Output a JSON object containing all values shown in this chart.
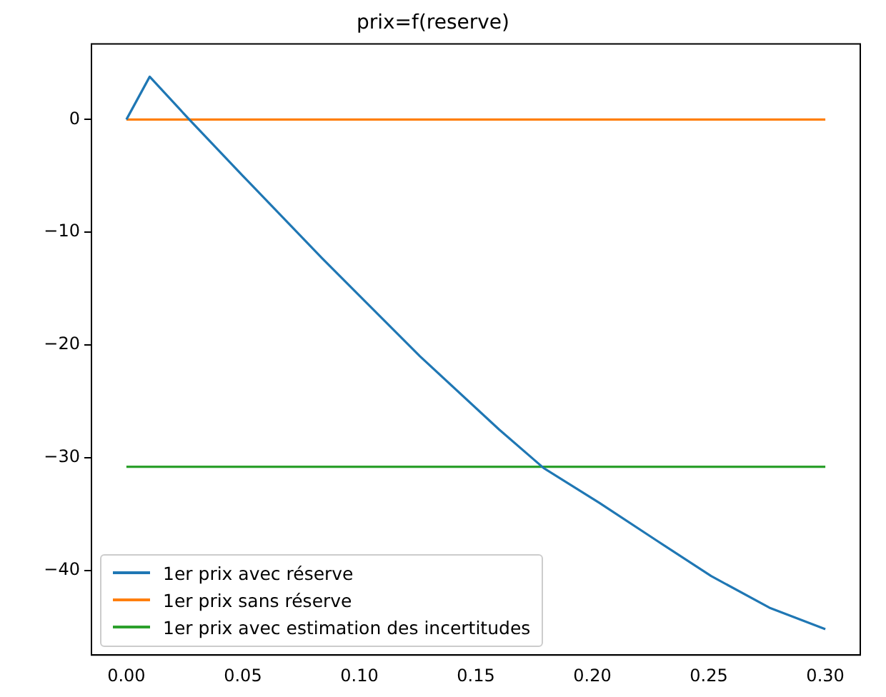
{
  "chart_data": {
    "type": "line",
    "title": "prix=f(reserve)",
    "xlim": [
      -0.015,
      0.315
    ],
    "ylim": [
      -47.5,
      6.7
    ],
    "xticks": [
      {
        "value": 0,
        "label": "0.00"
      },
      {
        "value": 0.05,
        "label": "0.05"
      },
      {
        "value": 0.1,
        "label": "0.10"
      },
      {
        "value": 0.15,
        "label": "0.15"
      },
      {
        "value": 0.2,
        "label": "0.20"
      },
      {
        "value": 0.25,
        "label": "0.25"
      },
      {
        "value": 0.3,
        "label": "0.30"
      }
    ],
    "yticks": [
      0,
      {
        "value": -10,
        "label": "−10"
      },
      {
        "value": -20,
        "label": "−20"
      },
      {
        "value": -30,
        "label": "−30"
      },
      {
        "value": -40,
        "label": "−40"
      }
    ],
    "legend": "bottom left",
    "marker": "none",
    "line_style": "solid",
    "series": [
      {
        "name": "1er prix avec réserve",
        "color": "#1f77b4",
        "x": [
          0,
          0.01,
          0.027,
          0.05,
          0.084,
          0.126,
          0.16,
          0.179,
          0.203,
          0.228,
          0.251,
          0.276,
          0.3
        ],
        "values": [
          0,
          3.8,
          0,
          -5,
          -12.3,
          -21,
          -27.5,
          -30.9,
          -34,
          -37.4,
          -40.5,
          -43.3,
          -45.2
        ]
      },
      {
        "name": "1er prix sans réserve",
        "color": "#ff7f0e",
        "x": [
          0,
          0.3
        ],
        "values": [
          0,
          0
        ]
      },
      {
        "name": "1er prix avec estimation des incertitudes",
        "color": "#2ca02c",
        "x": [
          0,
          0.3
        ],
        "values": [
          -30.8,
          -30.8
        ]
      }
    ]
  }
}
